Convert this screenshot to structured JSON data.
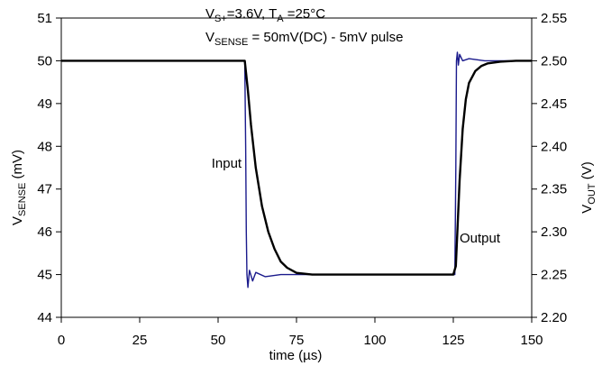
{
  "chart_data": {
    "type": "line",
    "title_line1": {
      "v": "V",
      "v_sub": "S+",
      "mid": "=3.6V, T",
      "t_sub": "A",
      "tail": " =25°C"
    },
    "title_line2": {
      "v": "V",
      "v_sub": "SENSE",
      "tail": " = 50mV(DC) - 5mV pulse"
    },
    "xlabel": "time (µs)",
    "ylabel_left": {
      "main": "V",
      "sub": "SENSE",
      "unit": " (mV)"
    },
    "ylabel_right": {
      "main": "V",
      "sub": "OUT",
      "unit": " (V)"
    },
    "xlim": [
      0,
      150
    ],
    "ylim_left": [
      44,
      51
    ],
    "ylim_right": [
      2.2,
      2.55
    ],
    "x_ticks": [
      "0",
      "25",
      "50",
      "75",
      "100",
      "125",
      "150"
    ],
    "y_ticks_left": [
      "44",
      "45",
      "46",
      "47",
      "48",
      "49",
      "50",
      "51"
    ],
    "y_ticks_right": [
      "2.20",
      "2.25",
      "2.30",
      "2.35",
      "2.40",
      "2.45",
      "2.50",
      "2.55"
    ],
    "annotations": [
      {
        "text": "Input",
        "x": 57.5,
        "y": 47.5
      },
      {
        "text": "Output",
        "x": 127,
        "y": 45.75
      }
    ],
    "grid": false,
    "series": [
      {
        "name": "Input",
        "axis": "left",
        "color": "#1a1a8c",
        "x": [
          0,
          25,
          50,
          58.5,
          58.8,
          59.0,
          59.2,
          59.5,
          60,
          61,
          62,
          65,
          70,
          100,
          125.5,
          125.8,
          126.0,
          126.3,
          126.6,
          127,
          128,
          130,
          135,
          150
        ],
        "y": [
          50.0,
          50.0,
          50.0,
          50.0,
          48.0,
          46.0,
          45.0,
          44.7,
          45.1,
          44.85,
          45.05,
          44.95,
          45.0,
          45.0,
          45.0,
          47.5,
          50.0,
          50.2,
          49.9,
          50.15,
          50.0,
          50.05,
          50.0,
          50.0
        ]
      },
      {
        "name": "Output",
        "axis": "right",
        "color": "#000000",
        "x": [
          0,
          58.5,
          59.5,
          60.5,
          62,
          64,
          66,
          68,
          70,
          72,
          75,
          80,
          90,
          125,
          125.8,
          126.3,
          127,
          128,
          129,
          130,
          132,
          134,
          136,
          140,
          145,
          150
        ],
        "y": [
          2.5,
          2.5,
          2.465,
          2.425,
          2.375,
          2.33,
          2.3,
          2.28,
          2.265,
          2.258,
          2.252,
          2.25,
          2.25,
          2.25,
          2.26,
          2.3,
          2.36,
          2.42,
          2.455,
          2.474,
          2.488,
          2.494,
          2.497,
          2.499,
          2.5,
          2.5
        ]
      }
    ]
  }
}
